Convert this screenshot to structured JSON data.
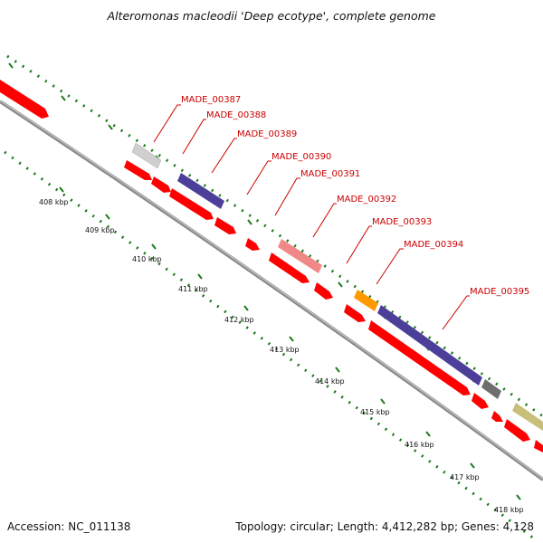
{
  "title": "Alteromonas macleodii 'Deep ecotype', complete genome",
  "footer": {
    "accession": "Accession: NC_011138",
    "topology": "Topology: circular; Length: 4,412,282 bp; Genes: 4,128"
  },
  "colors": {
    "backbone": "#8c8c8c",
    "ticks": "#1a7a1a",
    "label_text": "#cc0000",
    "label_line": "#cc0000",
    "cds_red": "#ff0000",
    "blue": "#4b3f9a",
    "grey_light": "#cfcfcf",
    "grey_dark": "#6e6e6e",
    "pink": "#f08888",
    "orange": "#ff9900",
    "olive": "#c8c07a"
  },
  "kbp_labels": [
    "408 kbp",
    "409 kbp",
    "410 kbp",
    "411 kbp",
    "412 kbp",
    "413 kbp",
    "414 kbp",
    "415 kbp",
    "416 kbp",
    "417 kbp",
    "418 kbp"
  ],
  "gene_labels": [
    "MADE_00387",
    "MADE_00388",
    "MADE_00389",
    "MADE_00390",
    "MADE_00391",
    "MADE_00392",
    "MADE_00393",
    "MADE_00394",
    "MADE_00395"
  ]
}
